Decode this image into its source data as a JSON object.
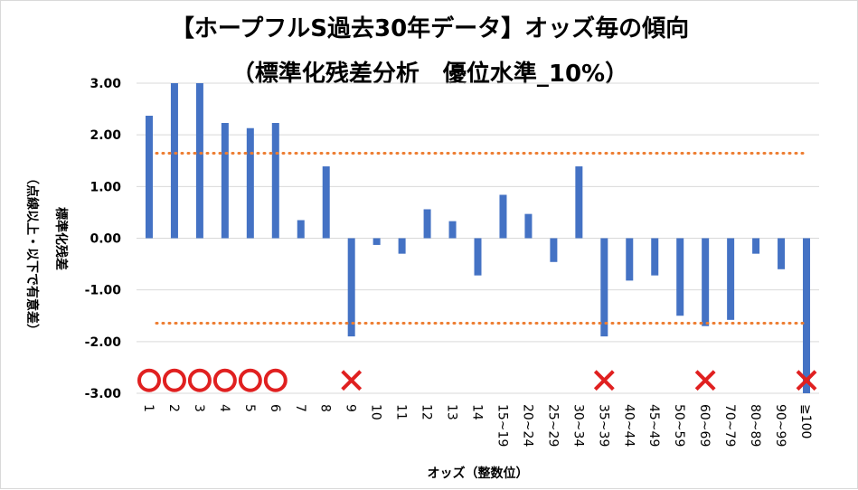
{
  "chart_data": {
    "type": "bar",
    "title": "【ホープフルS過去30年データ】オッズ毎の傾向",
    "subtitle": "（標準化残差分析　優位水準_10%）",
    "xlabel": "オッズ（整数位）",
    "ylabel": "標準化残差",
    "ylabel_note": "（点線以上・以下で有意差）",
    "ylim": [
      -3,
      3
    ],
    "yticks": [
      "3.00",
      "2.00",
      "1.00",
      "0.00",
      "-1.00",
      "-2.00",
      "-3.00"
    ],
    "grid": true,
    "bar_color": "#4472c4",
    "threshold_color": "#ed7d31",
    "thresholds": [
      1.645,
      -1.645
    ],
    "categories": [
      "1",
      "2",
      "3",
      "4",
      "5",
      "6",
      "7",
      "8",
      "9",
      "10",
      "11",
      "12",
      "13",
      "14",
      "15~19",
      "20~24",
      "25~29",
      "30~34",
      "35~39",
      "40~44",
      "45~49",
      "50~59",
      "60~69",
      "70~79",
      "80~89",
      "90~99",
      "≧100"
    ],
    "values": [
      2.37,
      3.0,
      3.0,
      2.23,
      2.13,
      2.23,
      0.35,
      1.39,
      -1.9,
      -0.13,
      -0.3,
      0.56,
      0.33,
      -0.72,
      0.84,
      0.47,
      -0.46,
      1.39,
      -1.9,
      -0.82,
      -0.72,
      -1.5,
      -1.7,
      -1.58,
      -0.3,
      -0.6,
      -3.0
    ],
    "markers": [
      {
        "category": "1",
        "symbol": "circle"
      },
      {
        "category": "2",
        "symbol": "circle"
      },
      {
        "category": "3",
        "symbol": "circle"
      },
      {
        "category": "4",
        "symbol": "circle"
      },
      {
        "category": "5",
        "symbol": "circle"
      },
      {
        "category": "6",
        "symbol": "circle"
      },
      {
        "category": "9",
        "symbol": "cross"
      },
      {
        "category": "35~39",
        "symbol": "cross"
      },
      {
        "category": "60~69",
        "symbol": "cross"
      },
      {
        "category": "≧100",
        "symbol": "cross"
      }
    ],
    "marker_color": "#e02020"
  }
}
